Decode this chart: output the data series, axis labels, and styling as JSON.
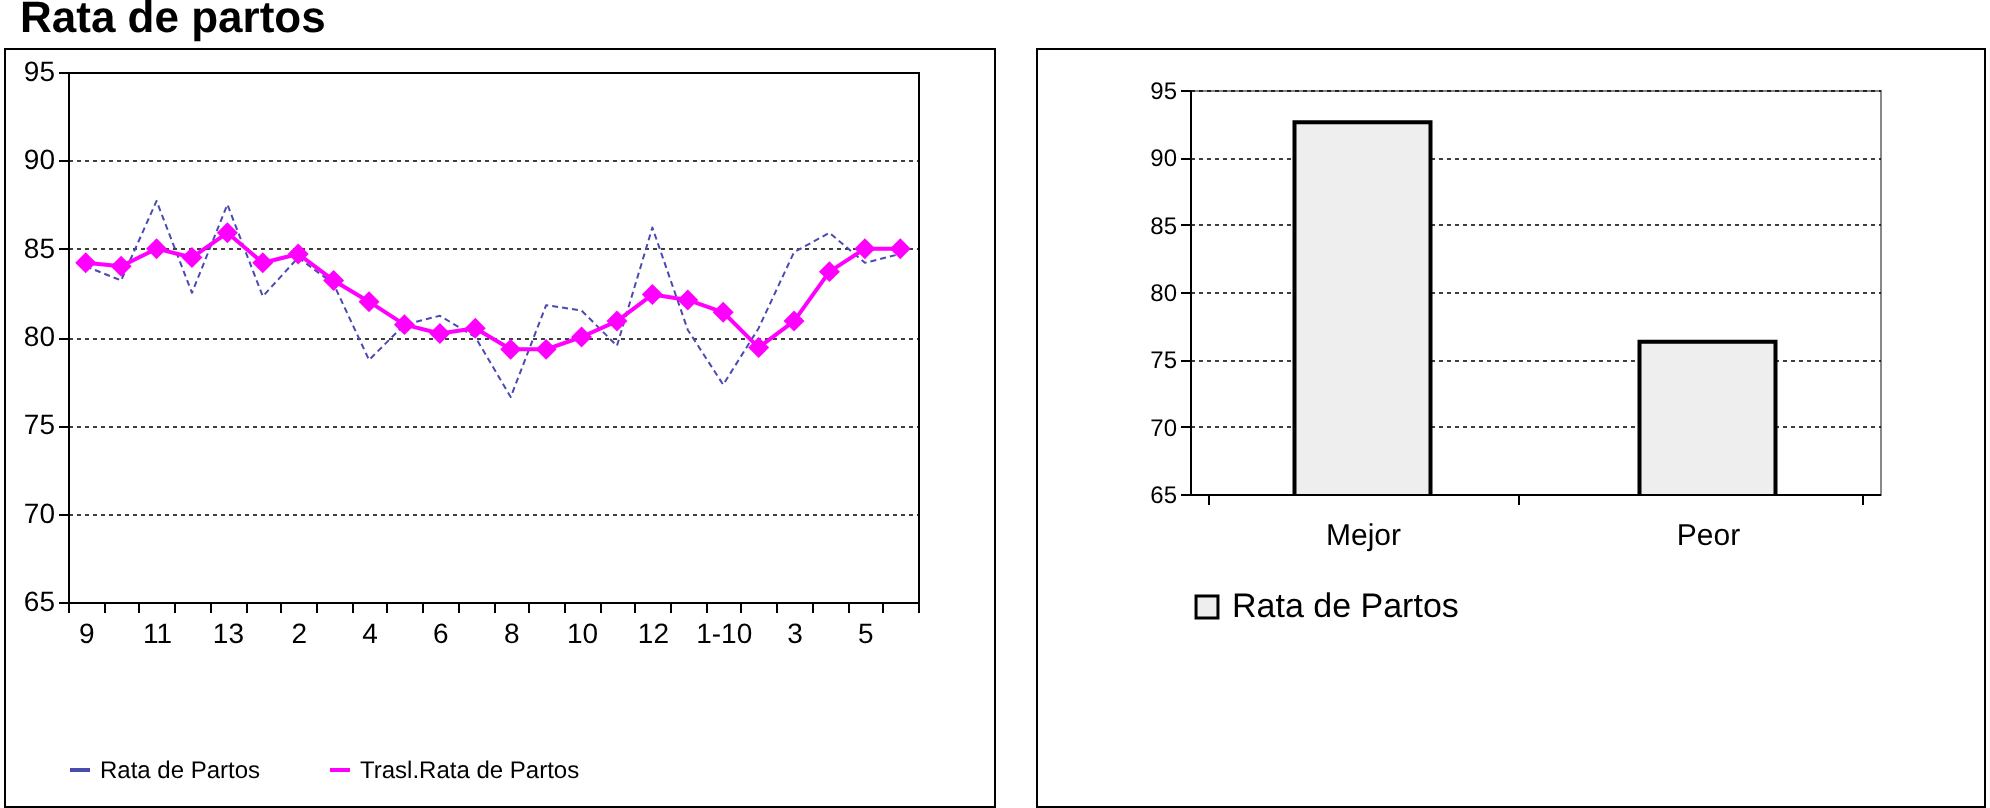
{
  "chart_data": [
    {
      "type": "line",
      "title": "Rata de partos",
      "categories": [
        "9",
        null,
        "11",
        null,
        "13",
        null,
        "2",
        null,
        "4",
        null,
        "6",
        null,
        "8",
        null,
        "10",
        null,
        "12",
        null,
        "1-10",
        null,
        "3",
        null,
        "5",
        null
      ],
      "series": [
        {
          "name": "Rata de Partos",
          "color": "#4a4ab0",
          "line_style": "dashed",
          "marker": "none",
          "values": [
            84.0,
            83.2,
            87.7,
            82.5,
            87.5,
            82.3,
            84.5,
            83.0,
            78.7,
            80.7,
            81.2,
            80.0,
            76.6,
            81.8,
            81.5,
            79.5,
            86.2,
            80.4,
            77.3,
            80.5,
            84.8,
            85.9,
            84.2,
            84.7
          ]
        },
        {
          "name": "Trasl.Rata de Partos",
          "color": "#ff00ff",
          "line_style": "solid",
          "marker": "diamond",
          "values": [
            84.2,
            84.0,
            85.0,
            84.5,
            85.9,
            84.2,
            84.7,
            83.2,
            82.0,
            80.7,
            80.2,
            80.5,
            79.3,
            79.3,
            80.0,
            80.9,
            82.4,
            82.1,
            81.4,
            79.4,
            80.9,
            83.7,
            85.0,
            85.0
          ]
        }
      ],
      "ylim": [
        65,
        95
      ],
      "yticks": [
        65,
        70,
        75,
        80,
        85,
        90,
        95
      ],
      "grid": "y",
      "legend": "bottom"
    },
    {
      "type": "bar",
      "categories": [
        "Mejor",
        "Peor"
      ],
      "series": [
        {
          "name": "Rata de Partos",
          "color": "#eeeeee",
          "values": [
            92.6,
            76.3
          ]
        }
      ],
      "ylim": [
        65,
        95
      ],
      "yticks": [
        65,
        70,
        75,
        80,
        85,
        90,
        95
      ],
      "grid": "y",
      "legend": "bottom left"
    }
  ]
}
